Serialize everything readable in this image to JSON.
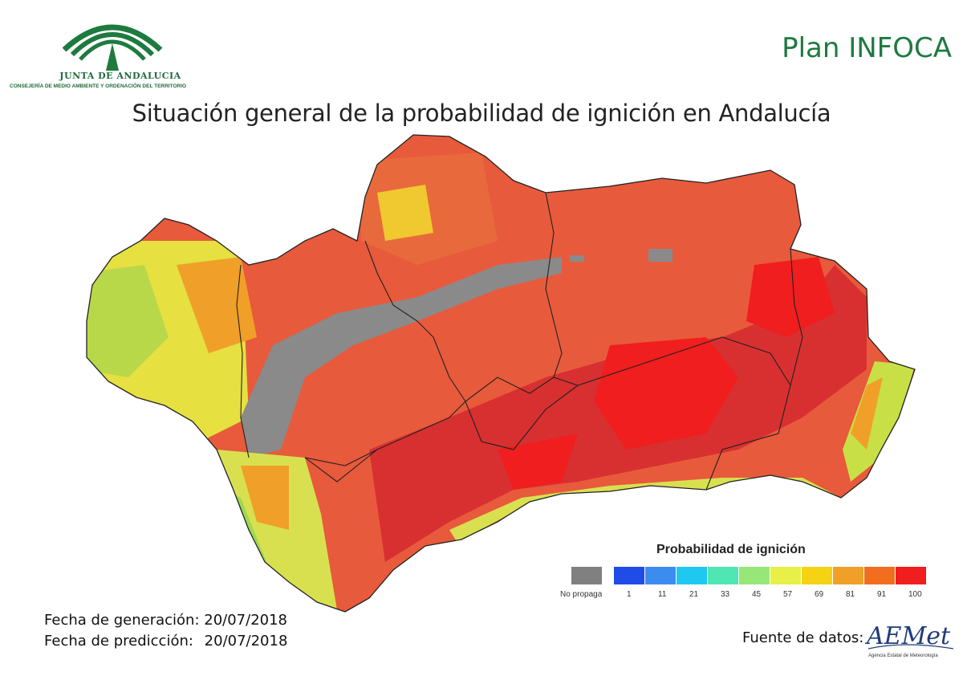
{
  "header": {
    "org_name": "JUNTA DE ANDALUCIA",
    "org_subtitle": "CONSEJERÍA DE MEDIO AMBIENTE Y ORDENACIÓN DEL TERRITORIO",
    "plan_label": "Plan INFOCA",
    "title": "Situación general de la probabilidad de ignición en Andalucía"
  },
  "legend": {
    "title": "Probabilidad de ignición",
    "no_data_label": "No propaga",
    "no_data_color": "#808080",
    "classes": [
      {
        "label": "1",
        "color": "#1f4be6"
      },
      {
        "label": "11",
        "color": "#3c8cf0"
      },
      {
        "label": "21",
        "color": "#1ec8f0"
      },
      {
        "label": "33",
        "color": "#50e6b4"
      },
      {
        "label": "45",
        "color": "#96e678"
      },
      {
        "label": "57",
        "color": "#e6f046"
      },
      {
        "label": "69",
        "color": "#f5d214"
      },
      {
        "label": "81",
        "color": "#f0a028"
      },
      {
        "label": "91",
        "color": "#f06e1e"
      },
      {
        "label": "100",
        "color": "#f01e1e"
      }
    ]
  },
  "footer": {
    "generation_label": "Fecha de generación:",
    "generation_date": "20/07/2018",
    "prediction_label": "Fecha de predicción:",
    "prediction_date": "20/07/2018",
    "source_label": "Fuente de datos:",
    "source_logo_text": "AEMet",
    "source_logo_subtitle": "Agencia Estatal de Meteorología"
  },
  "map": {
    "region": "Andalucía",
    "provinces": [
      "Huelva",
      "Sevilla",
      "Córdoba",
      "Jaén",
      "Cádiz",
      "Málaga",
      "Granada",
      "Almería"
    ]
  }
}
